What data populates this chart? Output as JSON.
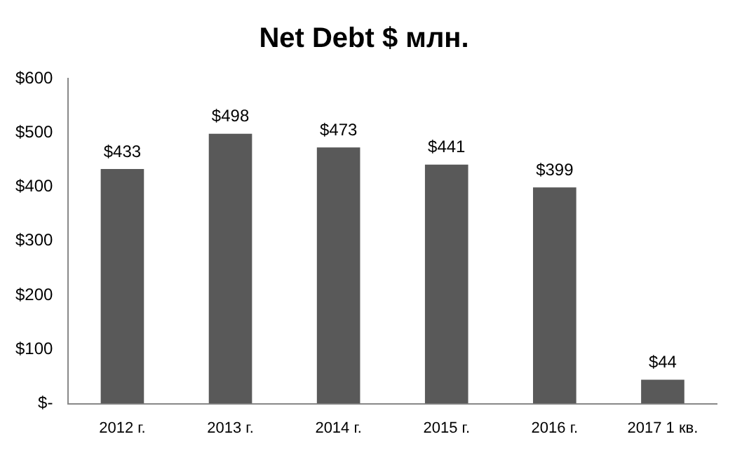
{
  "chart_data": {
    "type": "bar",
    "title": "Net Debt $ млн.",
    "categories": [
      "2012 г.",
      "2013 г.",
      "2014 г.",
      "2015 г.",
      "2016 г.",
      "2017 1 кв."
    ],
    "values": [
      433,
      498,
      473,
      441,
      399,
      44
    ],
    "value_labels": [
      "$433",
      "$498",
      "$473",
      "$441",
      "$399",
      "$44"
    ],
    "color": "#595959",
    "ylim": [
      0,
      600
    ],
    "yticks": [
      {
        "value": 0,
        "label": "$-"
      },
      {
        "value": 100,
        "label": "$100"
      },
      {
        "value": 200,
        "label": "$200"
      },
      {
        "value": 300,
        "label": "$300"
      },
      {
        "value": 400,
        "label": "$400"
      },
      {
        "value": 500,
        "label": "$500"
      },
      {
        "value": 600,
        "label": "$600"
      }
    ],
    "grid": false,
    "legend": false
  }
}
